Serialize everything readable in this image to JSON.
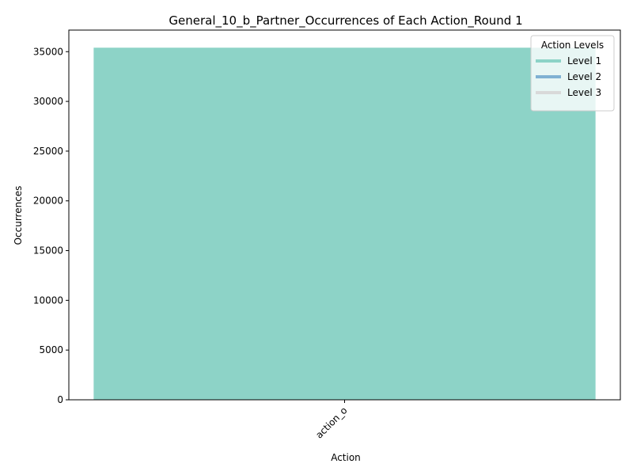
{
  "chart_data": {
    "type": "bar",
    "title": "General_10_b_Partner_Occurrences of Each Action_Round 1",
    "xlabel": "Action",
    "ylabel": "Occurrences",
    "categories": [
      "action_o"
    ],
    "values": [
      35400
    ],
    "bar_color": "#8dd3c7",
    "ylim": [
      0,
      37170
    ],
    "yticks": [
      0,
      5000,
      10000,
      15000,
      20000,
      25000,
      30000,
      35000
    ],
    "grid": false,
    "legend": {
      "title": "Action Levels",
      "placement": "top-right",
      "entries": [
        {
          "label": "Level 1",
          "color": "#8dd3c7"
        },
        {
          "label": "Level 2",
          "color": "#80b1d3"
        },
        {
          "label": "Level 3",
          "color": "#d9d9d9"
        }
      ]
    }
  }
}
